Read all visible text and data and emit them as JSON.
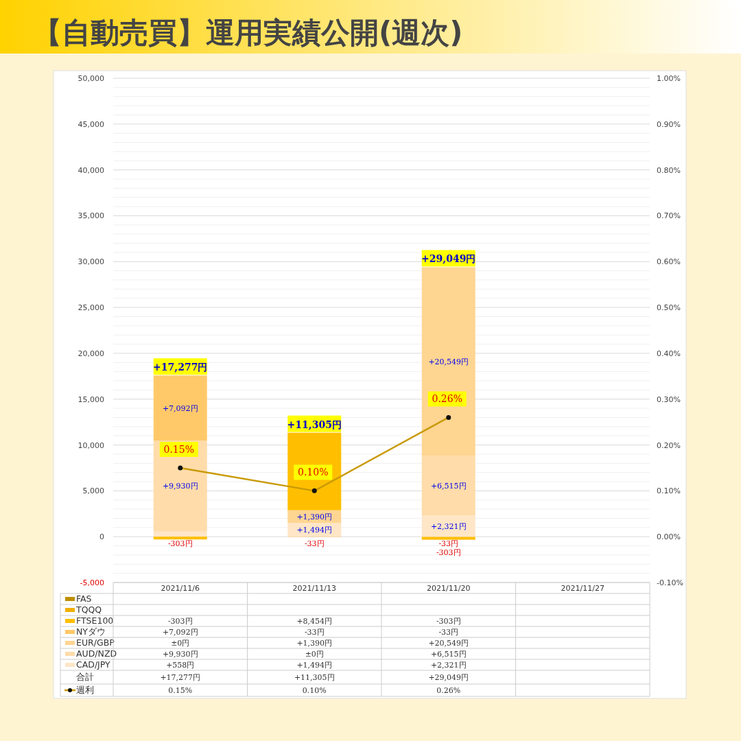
{
  "chart_data": {
    "type": "bar",
    "title": "【自動売買】運用実績公開(週次)",
    "stacked": true,
    "grid": "y",
    "legend": "bottom",
    "categories": [
      "2021/11/6",
      "2021/11/13",
      "2021/11/20",
      "2021/11/27"
    ],
    "series": [
      {
        "name": "CAD/JPY",
        "color": "#ffe6c6",
        "values": [
          558,
          1494,
          2321,
          null
        ],
        "value_labels": [
          "+558円",
          "+1,494円",
          "+2,321円",
          null
        ]
      },
      {
        "name": "AUD/NZD",
        "color": "#ffdcaa",
        "values": [
          9930,
          0,
          6515,
          null
        ],
        "value_labels": [
          "+9,930円",
          "±0円",
          "+6,515円",
          null
        ]
      },
      {
        "name": "EUR/GBP",
        "color": "#ffd592",
        "values": [
          0,
          1390,
          20549,
          null
        ],
        "value_labels": [
          "±0円",
          "+1,390円",
          "+20,549円",
          null
        ]
      },
      {
        "name": "NYダウ",
        "color": "#ffc96a",
        "values": [
          7092,
          -33,
          -33,
          null
        ],
        "value_labels": [
          "+7,092円",
          "-33円",
          "-33円",
          null
        ]
      },
      {
        "name": "FTSE100",
        "color": "#ffbf00",
        "values": [
          -303,
          8454,
          -303,
          null
        ],
        "value_labels": [
          "-303円",
          "+8,454円",
          "-303円",
          null
        ]
      },
      {
        "name": "TQQQ",
        "color": "#f0b000",
        "values": [
          null,
          null,
          null,
          null
        ]
      },
      {
        "name": "FAS",
        "color": "#bf8f00",
        "values": [
          null,
          null,
          null,
          null
        ]
      },
      {
        "name": "週利",
        "type": "line",
        "axis": "y2",
        "marker": "circle",
        "color": "#c99a06",
        "values": [
          0.15,
          0.1,
          0.26,
          null
        ],
        "value_labels": [
          "0.15%",
          "0.10%",
          "0.26%",
          null
        ]
      }
    ],
    "annotations": [
      "合計"
    ],
    "totals": [
      "+17,277円",
      "+11,305円",
      "+29,049円",
      null
    ],
    "ylim": [
      -5000,
      50000
    ],
    "yticks": [
      {
        "value": -5000,
        "label": "-5,000"
      },
      {
        "value": -4000,
        "label": null
      },
      {
        "value": -3000,
        "label": null
      },
      {
        "value": -2000,
        "label": null
      },
      {
        "value": -1000,
        "label": null
      },
      0,
      {
        "value": 1000,
        "label": null
      },
      {
        "value": 2000,
        "label": null
      },
      {
        "value": 3000,
        "label": null
      },
      {
        "value": 4000,
        "label": null
      },
      {
        "value": 5000,
        "label": "5,000"
      },
      {
        "value": 6000,
        "label": null
      },
      {
        "value": 7000,
        "label": null
      },
      {
        "value": 8000,
        "label": null
      },
      {
        "value": 9000,
        "label": null
      },
      {
        "value": 10000,
        "label": "10,000"
      },
      {
        "value": 11000,
        "label": null
      },
      {
        "value": 12000,
        "label": null
      },
      {
        "value": 13000,
        "label": null
      },
      {
        "value": 14000,
        "label": null
      },
      {
        "value": 15000,
        "label": "15,000"
      },
      {
        "value": 16000,
        "label": null
      },
      {
        "value": 17000,
        "label": null
      },
      {
        "value": 18000,
        "label": null
      },
      {
        "value": 19000,
        "label": null
      },
      {
        "value": 20000,
        "label": "20,000"
      },
      {
        "value": 21000,
        "label": null
      },
      {
        "value": 22000,
        "label": null
      },
      {
        "value": 23000,
        "label": null
      },
      {
        "value": 24000,
        "label": null
      },
      {
        "value": 25000,
        "label": "25,000"
      },
      {
        "value": 26000,
        "label": null
      },
      {
        "value": 27000,
        "label": null
      },
      {
        "value": 28000,
        "label": null
      },
      {
        "value": 29000,
        "label": null
      },
      {
        "value": 30000,
        "label": "30,000"
      },
      {
        "value": 31000,
        "label": null
      },
      {
        "value": 32000,
        "label": null
      },
      {
        "value": 33000,
        "label": null
      },
      {
        "value": 34000,
        "label": null
      },
      {
        "value": 35000,
        "label": "35,000"
      },
      {
        "value": 36000,
        "label": null
      },
      {
        "value": 37000,
        "label": null
      },
      {
        "value": 38000,
        "label": null
      },
      {
        "value": 39000,
        "label": null
      },
      {
        "value": 40000,
        "label": "40,000"
      },
      {
        "value": 41000,
        "label": null
      },
      {
        "value": 42000,
        "label": null
      },
      {
        "value": 43000,
        "label": null
      },
      {
        "value": 44000,
        "label": null
      },
      {
        "value": 45000,
        "label": "45,000"
      },
      {
        "value": 46000,
        "label": null
      },
      {
        "value": 47000,
        "label": null
      },
      {
        "value": 48000,
        "label": null
      },
      {
        "value": 49000,
        "label": null
      },
      {
        "value": 50000,
        "label": "50,000"
      }
    ],
    "y2lim": [
      -0.1,
      1.0
    ],
    "y2ticks": [
      {
        "value": -0.1,
        "label": "-0.10%"
      },
      {
        "value": 0,
        "label": "0.00%"
      },
      {
        "value": 0.1,
        "label": "0.10%"
      },
      {
        "value": 0.2,
        "label": "0.20%"
      },
      {
        "value": 0.3,
        "label": "0.30%"
      },
      {
        "value": 0.4,
        "label": "0.40%"
      },
      {
        "value": 0.5,
        "label": "0.50%"
      },
      {
        "value": 0.6,
        "label": "0.60%"
      },
      {
        "value": 0.7,
        "label": "0.70%"
      },
      {
        "value": 0.8,
        "label": "0.80%"
      },
      {
        "value": 0.9,
        "label": "0.90%"
      },
      {
        "value": 1.0,
        "label": "1.00%"
      }
    ]
  }
}
